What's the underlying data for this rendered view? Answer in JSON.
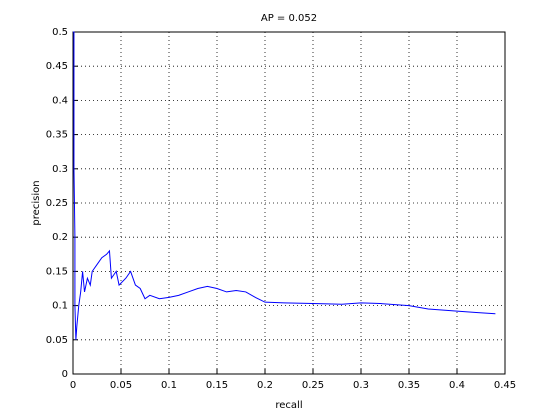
{
  "chart_data": {
    "type": "line",
    "title": "AP = 0.052",
    "x_label": "recall",
    "y_label": "precision",
    "x": [
      0,
      0.001,
      0.001,
      0.002,
      0.002,
      0.003,
      0.004,
      0.006,
      0.008,
      0.01,
      0.012,
      0.015,
      0.018,
      0.02,
      0.025,
      0.03,
      0.035,
      0.038,
      0.04,
      0.045,
      0.048,
      0.055,
      0.06,
      0.065,
      0.07,
      0.075,
      0.08,
      0.09,
      0.1,
      0.11,
      0.12,
      0.13,
      0.14,
      0.15,
      0.16,
      0.17,
      0.18,
      0.19,
      0.2,
      0.22,
      0.25,
      0.28,
      0.3,
      0.32,
      0.35,
      0.37,
      0.4,
      0.42,
      0.44
    ],
    "values": [
      0.5,
      0.5,
      0.3,
      0.2,
      0.1,
      0.05,
      0.07,
      0.1,
      0.12,
      0.15,
      0.12,
      0.14,
      0.13,
      0.15,
      0.16,
      0.17,
      0.175,
      0.18,
      0.14,
      0.15,
      0.13,
      0.14,
      0.15,
      0.13,
      0.125,
      0.11,
      0.115,
      0.11,
      0.112,
      0.115,
      0.12,
      0.125,
      0.128,
      0.125,
      0.12,
      0.122,
      0.12,
      0.112,
      0.105,
      0.104,
      0.103,
      0.102,
      0.104,
      0.103,
      0.1,
      0.095,
      0.092,
      0.09,
      0.088
    ],
    "color": "#0000ff",
    "xlim": [
      0,
      0.45
    ],
    "ylim": [
      0,
      0.5
    ],
    "xticks": [
      0,
      0.05,
      0.1,
      0.15,
      0.2,
      0.25,
      0.3,
      0.35,
      0.4,
      0.45
    ],
    "yticks": [
      0,
      0.05,
      0.1,
      0.15,
      0.2,
      0.25,
      0.3,
      0.35,
      0.4,
      0.45,
      0.5
    ],
    "grid": true
  }
}
